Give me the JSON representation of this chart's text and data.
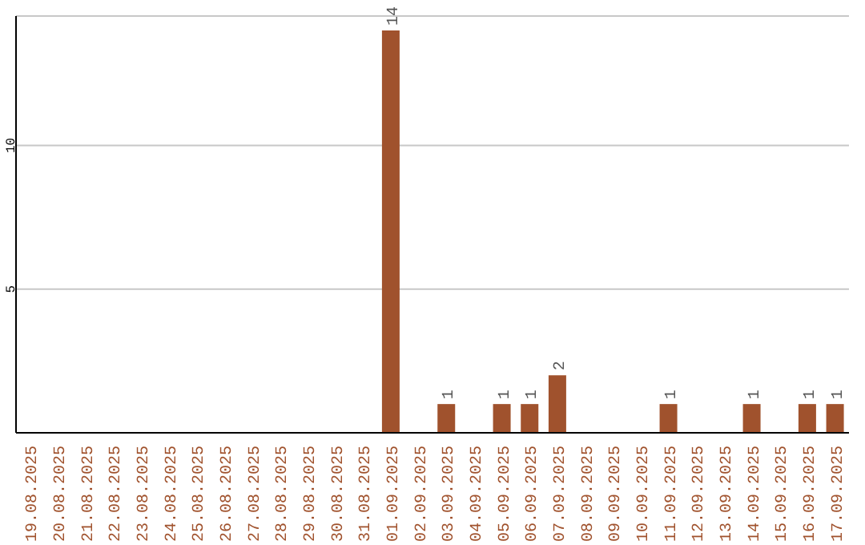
{
  "chart_data": {
    "type": "bar",
    "categories": [
      "19.08.2025",
      "20.08.2025",
      "21.08.2025",
      "22.08.2025",
      "23.08.2025",
      "24.08.2025",
      "25.08.2025",
      "26.08.2025",
      "27.08.2025",
      "28.08.2025",
      "29.08.2025",
      "30.08.2025",
      "31.08.2025",
      "01.09.2025",
      "02.09.2025",
      "03.09.2025",
      "04.09.2025",
      "05.09.2025",
      "06.09.2025",
      "07.09.2025",
      "08.09.2025",
      "09.09.2025",
      "10.09.2025",
      "11.09.2025",
      "12.09.2025",
      "13.09.2025",
      "14.09.2025",
      "15.09.2025",
      "16.09.2025",
      "17.09.2025"
    ],
    "values": [
      0,
      0,
      0,
      0,
      0,
      0,
      0,
      0,
      0,
      0,
      0,
      0,
      0,
      14,
      0,
      1,
      0,
      1,
      1,
      2,
      0,
      0,
      0,
      1,
      0,
      0,
      1,
      0,
      1,
      1
    ],
    "value_labels": [
      null,
      null,
      null,
      null,
      null,
      null,
      null,
      null,
      null,
      null,
      null,
      null,
      null,
      "14",
      null,
      "1",
      null,
      "1",
      "1",
      "2",
      null,
      null,
      null,
      "1",
      null,
      null,
      "1",
      null,
      "1",
      "1"
    ],
    "color": "#a0522d",
    "ylim": [
      0,
      14.5
    ],
    "yticks": [
      5,
      10
    ],
    "grid": "y"
  }
}
